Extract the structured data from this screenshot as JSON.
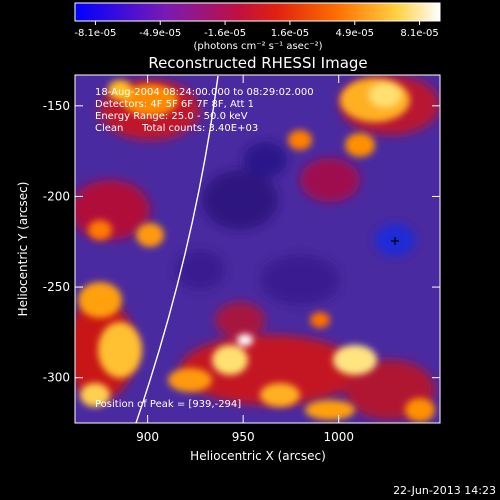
{
  "colorbar": {
    "ticks": [
      "-8.1e-05",
      "-4.9e-05",
      "-1.6e-05",
      "1.6e-05",
      "4.9e-05",
      "8.1e-05"
    ],
    "units_label": "(photons cm⁻² s⁻¹ asec⁻²)"
  },
  "plot": {
    "title": "Reconstructed RHESSI Image",
    "x_label": "Heliocentric X (arcsec)",
    "y_label": "Heliocentric Y (arcsec)",
    "x_ticks": [
      "900",
      "950",
      "1000"
    ],
    "y_ticks": [
      "-150",
      "-200",
      "-250",
      "-300"
    ],
    "x_range": [
      862,
      1053
    ],
    "y_range": [
      -325,
      -133
    ]
  },
  "annotations": {
    "time": "18-Aug-2004 08:24:00.000 to 08:29:02.000",
    "detectors": "Detectors: 4F 5F 6F 7F 8F, Att 1",
    "energy": "Energy Range: 25.0 - 50.0 keV",
    "method": "Clean",
    "counts": "Total counts: 3.40E+03",
    "peak": "Position of Peak = [939,-294]"
  },
  "footer": {
    "timestamp": "22-Jun-2013 14:23"
  },
  "colors": {
    "background": "#000000",
    "image_base": "#4a2aa0"
  }
}
